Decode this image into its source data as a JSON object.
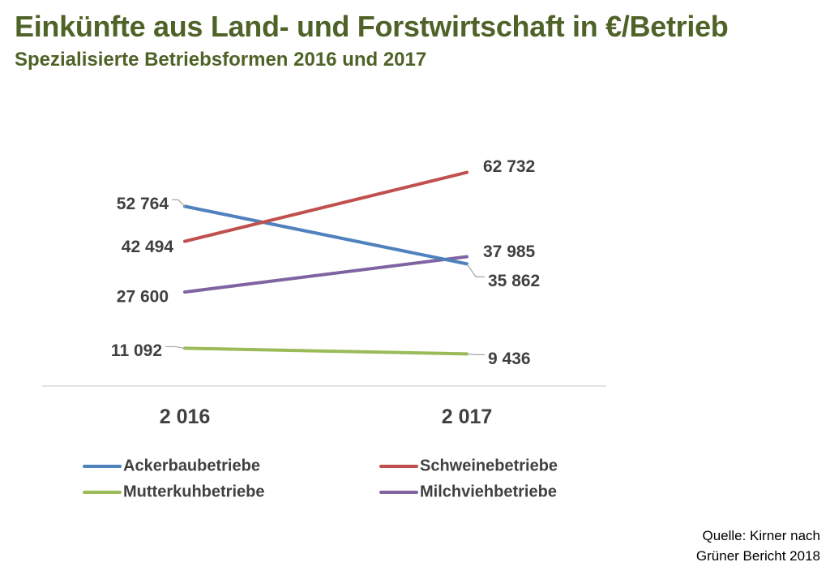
{
  "title": "Einkünfte aus Land- und Forstwirtschaft in €/Betrieb",
  "subtitle": "Spezialisierte Betriebsformen 2016 und 2017",
  "chart_data": {
    "type": "line",
    "title": "Einkünfte aus Land- und Forstwirtschaft in €/Betrieb",
    "subtitle": "Spezialisierte Betriebsformen 2016 und 2017",
    "categories": [
      "2 016",
      "2 017"
    ],
    "x": [
      2016,
      2017
    ],
    "ylim": [
      0,
      80000
    ],
    "grid": false,
    "legend_position": "bottom",
    "series": [
      {
        "name": "Ackerbaubetriebe",
        "color": "#4f81bd",
        "values": [
          52764,
          35862
        ],
        "labels": [
          "52 764",
          "35 862"
        ]
      },
      {
        "name": "Schweinebetriebe",
        "color": "#c0504d",
        "values": [
          42494,
          62732
        ],
        "labels": [
          "42 494",
          "62 732"
        ]
      },
      {
        "name": "Mutterkuhbetriebe",
        "color": "#9bbb59",
        "values": [
          11092,
          9436
        ],
        "labels": [
          "11 092",
          "9 436"
        ]
      },
      {
        "name": "Milchviehbetriebe",
        "color": "#8064a2",
        "values": [
          27600,
          37985
        ],
        "labels": [
          "27 600",
          "37 985"
        ]
      }
    ]
  },
  "source": {
    "line1": "Quelle: Kirner nach",
    "line2": "Grüner Bericht 2018"
  }
}
